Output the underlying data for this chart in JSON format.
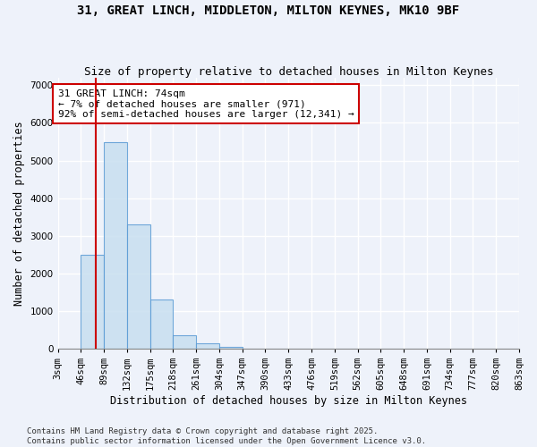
{
  "title_line1": "31, GREAT LINCH, MIDDLETON, MILTON KEYNES, MK10 9BF",
  "title_line2": "Size of property relative to detached houses in Milton Keynes",
  "xlabel": "Distribution of detached houses by size in Milton Keynes",
  "ylabel": "Number of detached properties",
  "bin_edges": [
    3,
    46,
    89,
    132,
    175,
    218,
    261,
    304,
    347,
    390,
    433,
    476,
    519,
    562,
    605,
    648,
    691,
    734,
    777,
    820,
    863
  ],
  "bar_heights": [
    5,
    2500,
    5500,
    3300,
    1300,
    350,
    150,
    50,
    0,
    0,
    0,
    0,
    0,
    0,
    0,
    0,
    0,
    0,
    0,
    0
  ],
  "bar_color": "#c8dff0",
  "bar_edgecolor": "#5b9bd5",
  "bar_alpha": 0.85,
  "vline_x": 74,
  "vline_color": "#cc0000",
  "annotation_text": "31 GREAT LINCH: 74sqm\n← 7% of detached houses are smaller (971)\n92% of semi-detached houses are larger (12,341) →",
  "annotation_box_color": "white",
  "annotation_edge_color": "#cc0000",
  "ylim": [
    0,
    7200
  ],
  "yticks": [
    0,
    1000,
    2000,
    3000,
    4000,
    5000,
    6000,
    7000
  ],
  "background_color": "#eef2fa",
  "footer_text": "Contains HM Land Registry data © Crown copyright and database right 2025.\nContains public sector information licensed under the Open Government Licence v3.0.",
  "grid_color": "white",
  "title_fontsize": 10,
  "subtitle_fontsize": 9,
  "axis_label_fontsize": 8.5,
  "tick_fontsize": 7.5,
  "annotation_fontsize": 8,
  "footer_fontsize": 6.5
}
